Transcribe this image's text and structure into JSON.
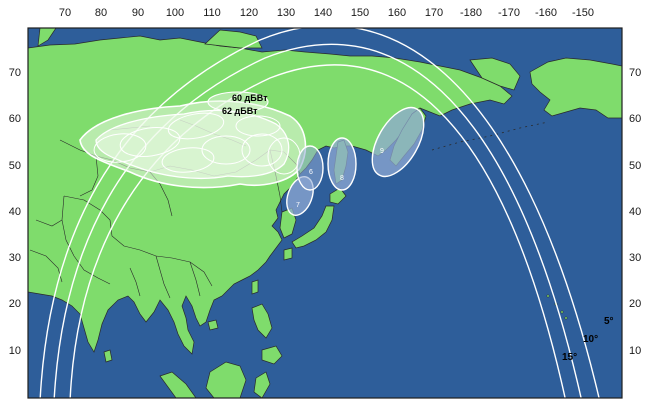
{
  "map": {
    "colors": {
      "ocean": "#2e5e9a",
      "land": "#7fdc6c",
      "border": "#2a2a2a",
      "contour": "#ffffff",
      "beam_fill": "#e8f7e2",
      "spot_fill": "#8faad3",
      "frame": "#1e1e1e"
    },
    "lon_ticks": [
      "70",
      "80",
      "90",
      "100",
      "110",
      "120",
      "130",
      "140",
      "150",
      "160",
      "170",
      "-180",
      "-170",
      "-160",
      "-150"
    ],
    "lat_ticks": [
      "70",
      "60",
      "50",
      "40",
      "30",
      "20",
      "10"
    ],
    "beam_labels": [
      "60 дБВт",
      "62 дБВт"
    ],
    "elevation_labels": [
      "5°",
      "10°",
      "15°"
    ],
    "spot_beams": [
      "6",
      "7",
      "8",
      "9"
    ]
  }
}
